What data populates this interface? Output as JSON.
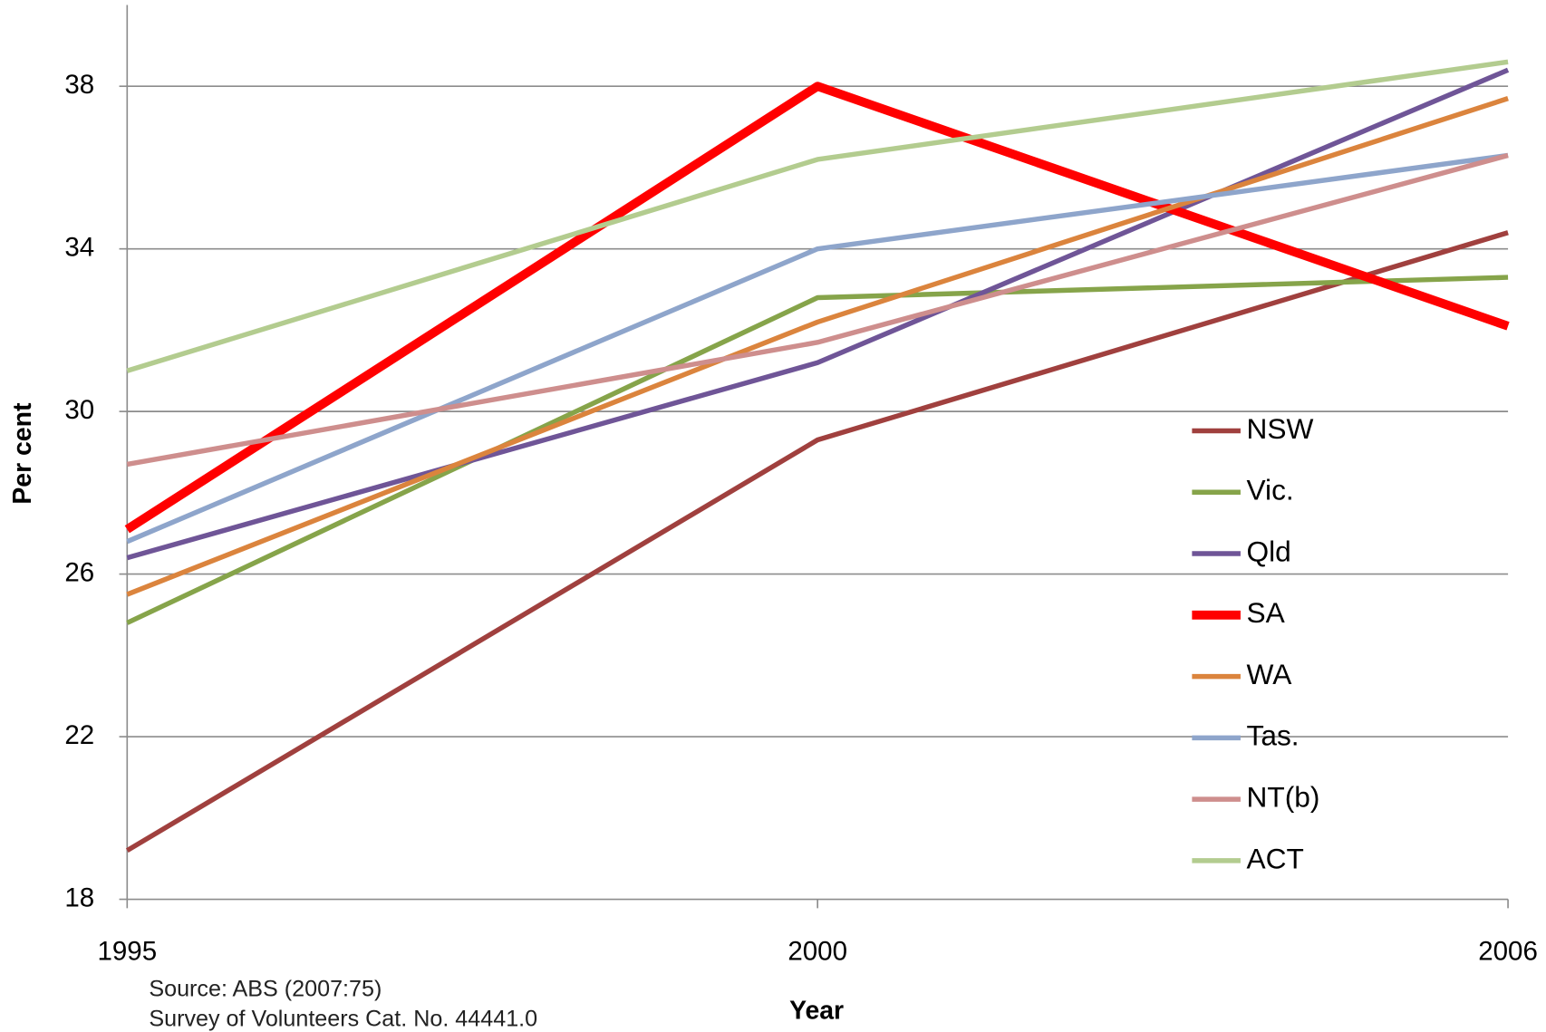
{
  "chart_data": {
    "type": "line",
    "x_label": "Year",
    "y_label": "Per cent",
    "source": [
      "Source: ABS (2007:75)",
      "Survey of Volunteers Cat. No. 44441.0"
    ],
    "categories": [
      "1995",
      "2000",
      "2006"
    ],
    "ylim": [
      18,
      40
    ],
    "yticks": [
      18,
      22,
      26,
      30,
      34,
      38
    ],
    "grid": true,
    "legend": "right",
    "series": [
      {
        "name": "NSW",
        "color": "#a0403e",
        "line_width": 5,
        "values": [
          19.2,
          29.3,
          34.4
        ]
      },
      {
        "name": "Vic.",
        "color": "#86a44a",
        "line_width": 5,
        "values": [
          24.8,
          32.8,
          33.3
        ]
      },
      {
        "name": "Qld",
        "color": "#6f5597",
        "line_width": 5,
        "values": [
          26.4,
          31.2,
          38.4
        ]
      },
      {
        "name": "SA",
        "color": "#ff0000",
        "line_width": 9,
        "values": [
          27.1,
          38.0,
          32.1
        ]
      },
      {
        "name": "WA",
        "color": "#db843d",
        "line_width": 5,
        "values": [
          25.5,
          32.2,
          37.7
        ]
      },
      {
        "name": "Tas.",
        "color": "#8ea5cb",
        "line_width": 5,
        "values": [
          26.8,
          34.0,
          36.3
        ]
      },
      {
        "name": "NT(b)",
        "color": "#ce8e8d",
        "line_width": 5,
        "values": [
          28.7,
          31.7,
          36.3
        ]
      },
      {
        "name": "ACT",
        "color": "#b3cc8f",
        "line_width": 5,
        "values": [
          31.0,
          36.2,
          38.6
        ]
      }
    ]
  }
}
